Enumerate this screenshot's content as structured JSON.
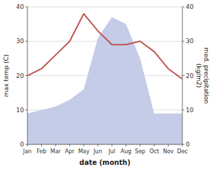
{
  "chart_data": {
    "type": "line",
    "categories": [
      "Jan",
      "Feb",
      "Mar",
      "Apr",
      "May",
      "Jun",
      "Jul",
      "Aug",
      "Sep",
      "Oct",
      "Nov",
      "Dec"
    ],
    "series": [
      {
        "type": "area",
        "axis": "y2",
        "color": "#c5cce8",
        "values": [
          9,
          10,
          11,
          13,
          16,
          31,
          37,
          35,
          25,
          9,
          9,
          9
        ]
      },
      {
        "type": "line",
        "color": "#c0504d",
        "values": [
          20,
          22,
          26,
          30,
          38,
          33,
          29,
          29,
          30,
          27,
          22,
          19
        ]
      }
    ],
    "xlabel": "date (month)",
    "ylabel": "max temp (C)",
    "y2label": "med. precipitation\n(kg/m2)",
    "ylim": [
      0,
      40
    ],
    "yticks": [
      0,
      10,
      20,
      30,
      40
    ],
    "y2lim": [
      0,
      40
    ],
    "y2ticks": [
      0,
      10,
      20,
      30,
      40
    ],
    "grid": true
  }
}
